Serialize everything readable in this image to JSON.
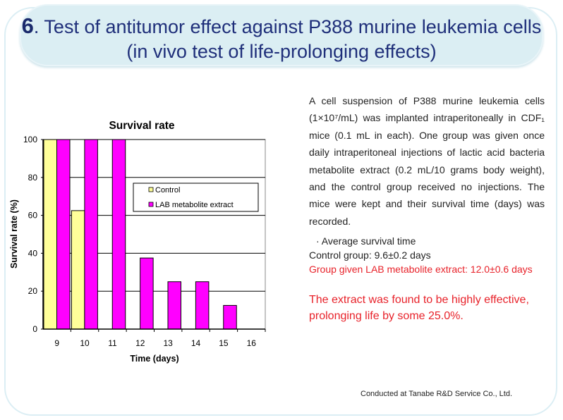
{
  "title": {
    "number": "6",
    "text": ". Test of antitumor effect against P388 murine leukemia cells (in vivo test of life-prolonging effects)"
  },
  "description": "A cell suspension of P388 murine leukemia cells (1×10⁷/mL) was implanted intraperitoneally in CDF₁ mice (0.1 mL in each). One group was given once daily intraperitoneal injections of lactic acid bacteria metabolite extract (0.2 mL/10 grams body weight), and the control group received no injections. The mice were kept and their survival time (days) was recorded.",
  "average": {
    "heading": "· Average survival time",
    "control": "Control group: 9.6±0.2 days",
    "lab": "Group given LAB metabolite extract: 12.0±0.6 days"
  },
  "conclusion": "The extract was found to be highly effective, prolonging life by some 25.0%.",
  "credit": "Conducted at Tanabe R&D Service Co., Ltd.",
  "chart_data": {
    "type": "bar",
    "title": "Survival rate",
    "xlabel": "Time (days)",
    "ylabel": "Survival rate (%)",
    "ylim": [
      0,
      100
    ],
    "yticks": [
      "0",
      "20",
      "40",
      "60",
      "80",
      "100"
    ],
    "categories": [
      "9",
      "10",
      "11",
      "12",
      "13",
      "14",
      "15",
      "16"
    ],
    "series": [
      {
        "name": "Control",
        "color": "#ffff99",
        "values": [
          100,
          62.5,
          0,
          0,
          0,
          0,
          0,
          0
        ]
      },
      {
        "name": "LAB metabolite extract",
        "color": "#ff00ff",
        "values": [
          100,
          100,
          100,
          37.5,
          25,
          25,
          12.5,
          0
        ]
      }
    ],
    "grid": true,
    "legend_position": "top-right"
  }
}
